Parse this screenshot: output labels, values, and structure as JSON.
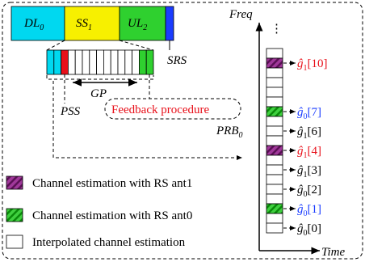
{
  "frame": {
    "segments": [
      {
        "label": "DL",
        "sub": "0"
      },
      {
        "label": "SS",
        "sub": "1"
      },
      {
        "label": "UL",
        "sub": "2"
      }
    ],
    "srs": "SRS"
  },
  "subframe": {
    "pss": "PSS",
    "gp": "GP"
  },
  "feedback": "Feedback procedure",
  "prb": {
    "label": "PRB",
    "sub": "0"
  },
  "axes": {
    "freq": "Freq",
    "time": "Time",
    "ellipsis": "⋮"
  },
  "estimates": [
    {
      "base": "ĝ",
      "sub": "1",
      "index": "[10]"
    },
    {
      "base": "ĝ",
      "sub": "0",
      "index": "[7]"
    },
    {
      "base": "ĝ",
      "sub": "1",
      "index": "[6]"
    },
    {
      "base": "ĝ",
      "sub": "1",
      "index": "[4]"
    },
    {
      "base": "ĝ",
      "sub": "1",
      "index": "[3]"
    },
    {
      "base": "ĝ",
      "sub": "0",
      "index": "[2]"
    },
    {
      "base": "ĝ",
      "sub": "0",
      "index": "[1]"
    },
    {
      "base": "ĝ",
      "sub": "0",
      "index": "[0]"
    }
  ],
  "legend": [
    "Channel estimation with RS ant1",
    "Channel estimation with RS ant0",
    "Interpolated channel estimation"
  ]
}
